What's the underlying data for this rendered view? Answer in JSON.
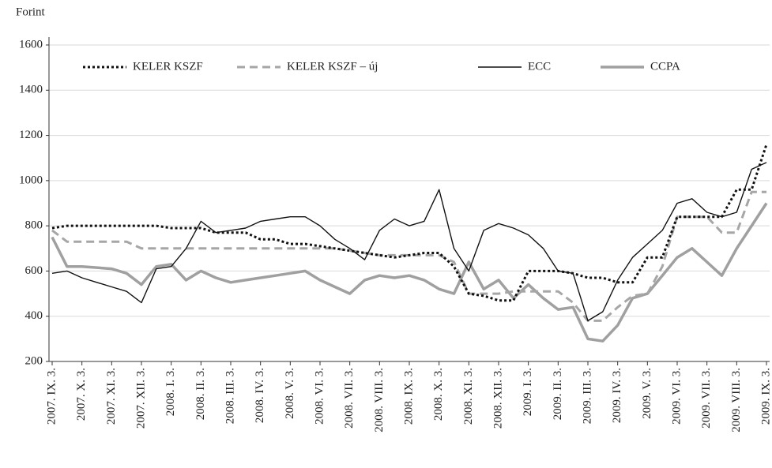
{
  "chart_data": {
    "type": "line",
    "y_axis_label": "Forint",
    "categories": [
      "2007. IX. 3.",
      null,
      "2007. X. 3.",
      null,
      "2007. XI. 3.",
      null,
      "2007. XII. 3.",
      null,
      "2008. I. 3.",
      null,
      "2008. II. 3.",
      null,
      "2008. III. 3.",
      null,
      "2008. IV. 3.",
      null,
      "2008. V. 3.",
      null,
      "2008. VI. 3.",
      null,
      "2008. VII. 3.",
      null,
      "2008. VIII. 3.",
      null,
      "2008. IX. 3.",
      null,
      "2008. X. 3.",
      null,
      "2008. XI. 3.",
      null,
      "2008. XII. 3.",
      null,
      "2009. I. 3.",
      null,
      "2009. II. 3.",
      null,
      "2009. III. 3.",
      null,
      "2009. IV. 3.",
      null,
      "2009. V. 3.",
      null,
      "2009. VI. 3.",
      null,
      "2009. VII. 3.",
      null,
      "2009. VIII. 3.",
      null,
      "2009. IX. 3."
    ],
    "series": [
      {
        "name": "KELER KSZF",
        "color": "#111111",
        "style": "dotted",
        "values": [
          790,
          800,
          800,
          800,
          800,
          800,
          800,
          800,
          790,
          790,
          790,
          770,
          770,
          770,
          740,
          740,
          720,
          720,
          710,
          700,
          690,
          680,
          670,
          660,
          670,
          680,
          680,
          620,
          500,
          490,
          470,
          470,
          600,
          600,
          600,
          590,
          570,
          570,
          550,
          550,
          660,
          660,
          840,
          840,
          840,
          840,
          960,
          960,
          1160
        ]
      },
      {
        "name": "KELER KSZF – új",
        "color": "#a6a6a6",
        "style": "dashed",
        "values": [
          780,
          730,
          730,
          730,
          730,
          730,
          700,
          700,
          700,
          700,
          700,
          700,
          700,
          700,
          700,
          700,
          700,
          700,
          700,
          700,
          690,
          680,
          670,
          670,
          670,
          670,
          670,
          640,
          500,
          500,
          500,
          510,
          510,
          510,
          510,
          460,
          380,
          380,
          440,
          490,
          500,
          620,
          840,
          840,
          840,
          770,
          770,
          950,
          950
        ]
      },
      {
        "name": "ECC",
        "color": "#111111",
        "style": "solid",
        "values": [
          590,
          600,
          570,
          550,
          530,
          510,
          460,
          610,
          620,
          700,
          820,
          770,
          780,
          790,
          820,
          830,
          840,
          840,
          800,
          740,
          700,
          650,
          780,
          830,
          800,
          820,
          960,
          700,
          600,
          780,
          810,
          790,
          760,
          700,
          600,
          590,
          380,
          420,
          560,
          660,
          720,
          780,
          900,
          920,
          860,
          840,
          860,
          1050,
          1080
        ]
      },
      {
        "name": "CCPA",
        "color": "#a0a0a0",
        "style": "thick",
        "values": [
          750,
          620,
          620,
          615,
          610,
          590,
          540,
          620,
          630,
          560,
          600,
          570,
          550,
          560,
          570,
          580,
          590,
          600,
          560,
          530,
          500,
          560,
          580,
          570,
          580,
          560,
          520,
          500,
          640,
          520,
          560,
          480,
          540,
          480,
          430,
          440,
          300,
          290,
          360,
          480,
          500,
          580,
          660,
          700,
          640,
          580,
          700,
          800,
          900
        ]
      }
    ],
    "ylim": [
      200,
      1600
    ],
    "yticks": [
      200,
      400,
      600,
      800,
      1000,
      1200,
      1400,
      1600
    ],
    "grid": true,
    "legend": "top"
  }
}
